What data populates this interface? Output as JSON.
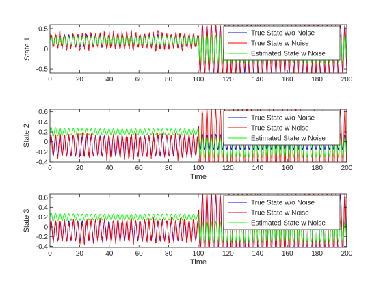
{
  "chart_data": [
    {
      "type": "line",
      "ylabel": "State 1",
      "xlabel": "",
      "xlim": [
        0,
        200
      ],
      "ylim": [
        -0.6,
        0.6
      ],
      "xticks": [
        "0",
        "20",
        "40",
        "60",
        "80",
        "100",
        "120",
        "140",
        "160",
        "180",
        "200"
      ],
      "yticks": [
        "-0.5",
        "0",
        "0.5"
      ],
      "ytick_values": [
        -0.5,
        0,
        0.5
      ],
      "legend": {
        "position": "top-right"
      },
      "series": [
        {
          "name": "True State w/o Noise",
          "color": "#0000ff",
          "signal": {
            "period": 3,
            "segments": [
              {
                "from": 0,
                "to": 100,
                "amp": 0.15,
                "offset": 0.2
              },
              {
                "from": 100,
                "to": 200,
                "amp": 0.6,
                "offset": 0
              }
            ]
          }
        },
        {
          "name": "True State w Noise",
          "color": "#ff0000",
          "signal": {
            "period": 3,
            "noise": 0.1,
            "segments": [
              {
                "from": 0,
                "to": 100,
                "amp": 0.17,
                "offset": 0.2
              },
              {
                "from": 100,
                "to": 200,
                "amp": 0.6,
                "offset": 0
              }
            ]
          }
        },
        {
          "name": "Estimated State w Noise",
          "color": "#00ff00",
          "signal": {
            "period": 3,
            "segments": [
              {
                "from": 0,
                "to": 100,
                "amp": 0.1,
                "offset": 0.2
              },
              {
                "from": 100,
                "to": 200,
                "amp": 0.35,
                "offset": 0
              }
            ]
          }
        }
      ]
    },
    {
      "type": "line",
      "ylabel": "State 2",
      "xlabel": "Time",
      "xlim": [
        0,
        200
      ],
      "ylim": [
        -0.4,
        0.65
      ],
      "xticks": [
        "0",
        "20",
        "40",
        "60",
        "80",
        "100",
        "120",
        "140",
        "160",
        "180",
        "200"
      ],
      "yticks": [
        "-0.4",
        "-0.2",
        "0",
        "0.2",
        "0.4",
        "0.6"
      ],
      "ytick_values": [
        -0.4,
        -0.2,
        0,
        0.2,
        0.4,
        0.6
      ],
      "legend": {
        "position": "top-right"
      },
      "series": [
        {
          "name": "True State w/o Noise",
          "color": "#0000ff",
          "signal": {
            "period": 3,
            "segments": [
              {
                "from": 0,
                "to": 100,
                "amp": 0.2,
                "offset": -0.08
              },
              {
                "from": 100,
                "to": 200,
                "amp": 0.15,
                "offset": 0
              }
            ]
          }
        },
        {
          "name": "True State w Noise",
          "color": "#ff0000",
          "signal": {
            "period": 3,
            "noise": 0.1,
            "segments": [
              {
                "from": 0,
                "to": 100,
                "amp": 0.2,
                "offset": -0.08
              },
              {
                "from": 100,
                "to": 200,
                "amp": 0.65,
                "offset": 0
              }
            ]
          }
        },
        {
          "name": "Estimated State w Noise",
          "color": "#00ff00",
          "signal": {
            "period": 3,
            "segments": [
              {
                "from": 0,
                "to": 100,
                "amp": 0.06,
                "offset": 0.2,
                "start_amp": 0.1
              },
              {
                "from": 100,
                "to": 200,
                "amp": 0.2,
                "offset": -0.1
              }
            ]
          }
        }
      ]
    },
    {
      "type": "line",
      "ylabel": "State 3",
      "xlabel": "Time",
      "xlim": [
        0,
        200
      ],
      "ylim": [
        -0.42,
        0.67
      ],
      "xticks": [
        "0",
        "20",
        "40",
        "60",
        "80",
        "100",
        "120",
        "140",
        "160",
        "180",
        "200"
      ],
      "yticks": [
        "-0.4",
        "-0.2",
        "0",
        "0.2",
        "0.4",
        "0.6"
      ],
      "ytick_values": [
        -0.4,
        -0.2,
        0,
        0.2,
        0.4,
        0.6
      ],
      "legend": {
        "position": "top-right"
      },
      "series": [
        {
          "name": "True State w/o Noise",
          "color": "#0000ff",
          "signal": {
            "period": 3,
            "segments": [
              {
                "from": 0,
                "to": 100,
                "amp": 0.2,
                "offset": -0.08
              },
              {
                "from": 100,
                "to": 200,
                "amp": 0.6,
                "offset": 0.05
              }
            ]
          }
        },
        {
          "name": "True State w Noise",
          "color": "#ff0000",
          "signal": {
            "period": 3,
            "noise": 0.1,
            "segments": [
              {
                "from": 0,
                "to": 100,
                "amp": 0.2,
                "offset": -0.08
              },
              {
                "from": 100,
                "to": 200,
                "amp": 0.65,
                "offset": 0.05
              }
            ]
          }
        },
        {
          "name": "Estimated State w Noise",
          "color": "#00ff00",
          "signal": {
            "period": 3,
            "segments": [
              {
                "from": 0,
                "to": 100,
                "amp": 0.06,
                "offset": 0.2,
                "start_amp": 0.1
              },
              {
                "from": 100,
                "to": 200,
                "amp": 0.2,
                "offset": -0.1
              }
            ]
          }
        }
      ]
    }
  ]
}
